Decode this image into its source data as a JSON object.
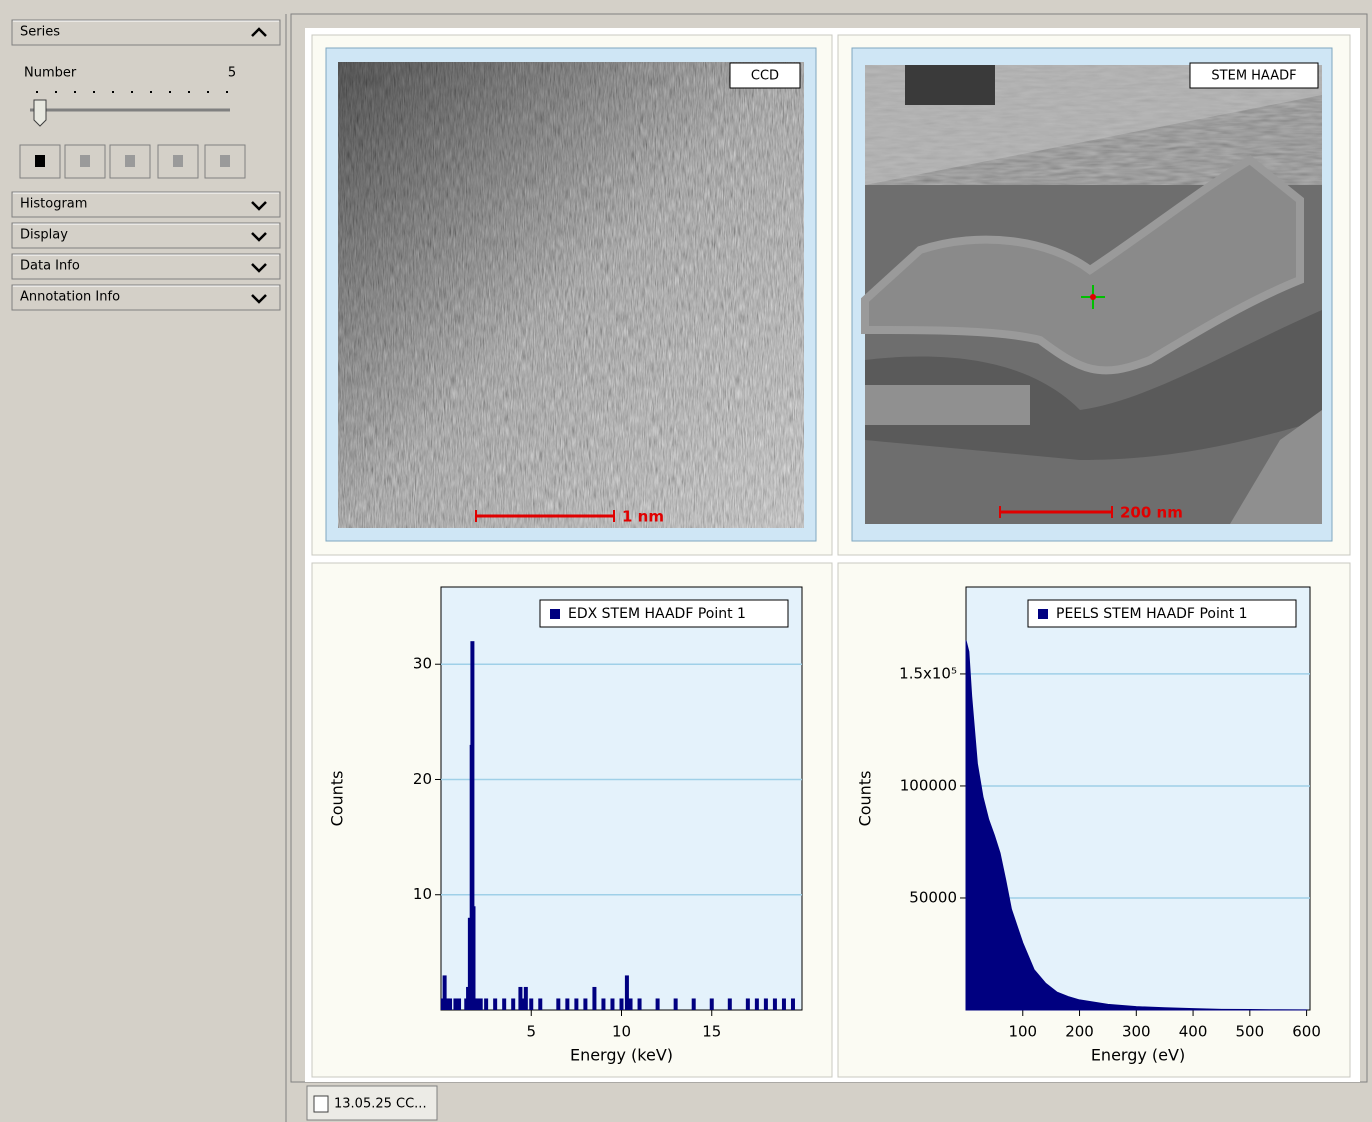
{
  "sidebar": {
    "sections": [
      {
        "title": "Series",
        "number_label": "Number",
        "number_value": 5
      },
      {
        "title": "Histogram"
      },
      {
        "title": "Display"
      },
      {
        "title": "Data Info"
      },
      {
        "title": "Annotation Info"
      }
    ]
  },
  "images": [
    {
      "label": "CCD",
      "scale_bar": "1 nm"
    },
    {
      "label": "STEM HAADF",
      "scale_bar": "200 nm"
    }
  ],
  "charts": [
    {
      "type": "bar",
      "xlabel": "Energy (keV)",
      "ylabel": "Counts",
      "xlim": [
        0,
        20
      ],
      "ylim": [
        0,
        36.7
      ],
      "xticks": [
        5,
        10,
        15
      ],
      "yticks": [
        10,
        20,
        30
      ],
      "grid": true,
      "legend": "top-right",
      "series": [
        {
          "name": "EDX STEM HAADF Point 1",
          "color": "#000080",
          "x": [
            0.1,
            0.2,
            0.3,
            0.4,
            0.5,
            0.6,
            0.8,
            1.0,
            1.2,
            1.4,
            1.5,
            1.6,
            1.7,
            1.74,
            1.8,
            1.9,
            2.0,
            2.2,
            2.5,
            3.0,
            3.5,
            4.0,
            4.4,
            4.5,
            4.7,
            5.0,
            5.5,
            6.0,
            6.5,
            7.0,
            7.5,
            8.0,
            8.5,
            9.0,
            9.5,
            10.0,
            10.3,
            10.5,
            11.0,
            12.0,
            13.0,
            14.0,
            15.0,
            16.0,
            16.5,
            17.0,
            17.5,
            18.0,
            18.5,
            19.0,
            19.5
          ],
          "values": [
            1,
            3,
            1,
            1,
            1,
            0,
            1,
            1,
            0,
            1,
            2,
            8,
            23,
            32,
            9,
            1,
            1,
            1,
            1,
            1,
            1,
            1,
            2,
            1,
            2,
            1,
            1,
            0,
            1,
            1,
            1,
            1,
            2,
            1,
            1,
            1,
            3,
            1,
            1,
            1,
            1,
            1,
            1,
            1,
            0,
            1,
            1,
            1,
            1,
            1,
            1
          ]
        }
      ]
    },
    {
      "type": "area",
      "xlabel": "Energy (eV)",
      "ylabel": "Counts",
      "xlim": [
        0,
        606
      ],
      "ylim": [
        0,
        188800
      ],
      "xticks": [
        100,
        200,
        300,
        400,
        500,
        600
      ],
      "yticks": [
        50000,
        100000,
        {
          "value": 150000,
          "label": "1.5x10⁵"
        }
      ],
      "grid": true,
      "legend": "top-right",
      "series": [
        {
          "name": "PEELS STEM HAADF Point 1",
          "color": "#000080",
          "x": [
            0,
            5,
            10,
            20,
            30,
            40,
            50,
            60,
            70,
            80,
            100,
            120,
            140,
            160,
            180,
            200,
            250,
            300,
            350,
            400,
            450,
            500,
            550,
            600
          ],
          "values": [
            165000,
            160000,
            140000,
            110000,
            95000,
            85000,
            78000,
            70000,
            58000,
            45000,
            30000,
            18000,
            12000,
            8000,
            6000,
            4500,
            2500,
            1500,
            1000,
            600,
            300,
            200,
            100,
            50
          ]
        }
      ]
    }
  ],
  "tab": {
    "label": "13.05.25 CC..."
  }
}
